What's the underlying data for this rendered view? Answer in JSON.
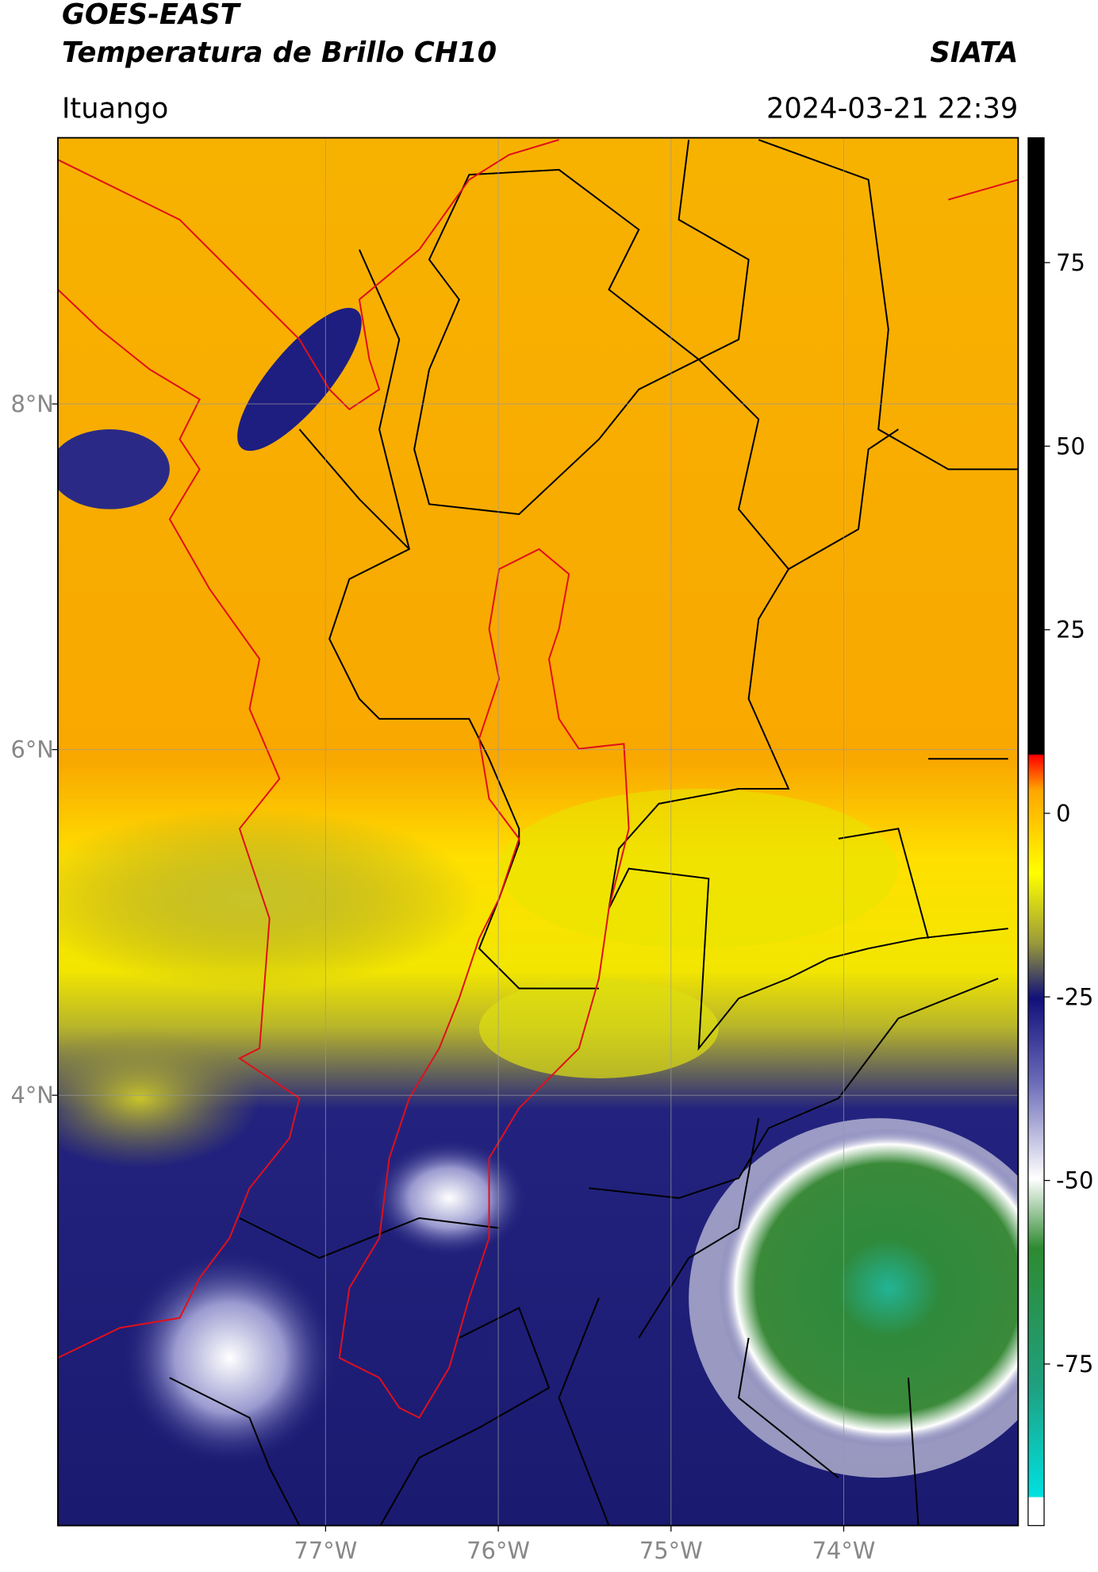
{
  "header": {
    "satellite": "GOES-EAST",
    "product": "Temperatura de Brillo CH10",
    "agency": "SIATA",
    "region": "Ituango",
    "datetime": "2024-03-21 22:39"
  },
  "map": {
    "xlim": [
      -78.55,
      -72.99
    ],
    "ylim": [
      1.51,
      9.54
    ],
    "xticks": [
      {
        "value": -77,
        "label": "77°W"
      },
      {
        "value": -76,
        "label": "76°W"
      },
      {
        "value": -75,
        "label": "75°W"
      },
      {
        "value": -74,
        "label": "74°W"
      }
    ],
    "yticks": [
      {
        "value": 8,
        "label": "8°N"
      },
      {
        "value": 6,
        "label": "6°N"
      },
      {
        "value": 4,
        "label": "4°N"
      }
    ],
    "grid": true
  },
  "colorbar": {
    "lim": [
      -97,
      92
    ],
    "ticks": [
      75,
      50,
      25,
      0,
      -25,
      -50,
      -75
    ]
  }
}
